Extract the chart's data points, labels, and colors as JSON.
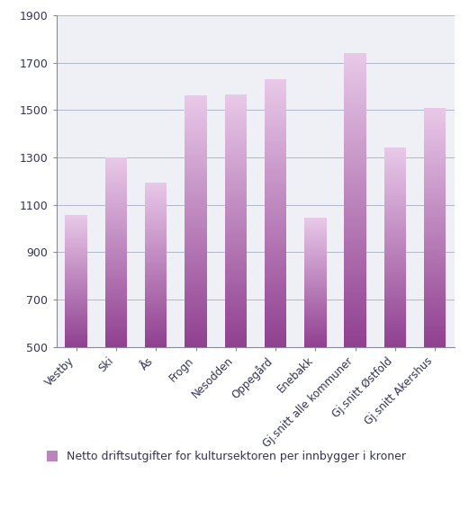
{
  "categories": [
    "Vestby",
    "Ski",
    "Ås",
    "Frogn",
    "Nesodden",
    "Oppegård",
    "Enebakk",
    "Gj.snitt alle kommuner",
    "Gj.snitt Østfold",
    "Gj.snitt Akershus"
  ],
  "values": [
    1055,
    1300,
    1195,
    1560,
    1565,
    1630,
    1045,
    1740,
    1340,
    1510
  ],
  "ylim": [
    500,
    1900
  ],
  "yticks": [
    500,
    700,
    900,
    1100,
    1300,
    1500,
    1700,
    1900
  ],
  "bar_color_top": "#e8c8e8",
  "bar_color_bottom": "#904090",
  "legend_label": "Netto driftsutgifter for kultursektoren per innbygger i kroner",
  "legend_color_top": "#e8c8e8",
  "legend_color_bottom": "#904090",
  "plot_bg_color": "#eef0f5",
  "outer_bg_color": "#ffffff",
  "grid_color": "#b0b8c8",
  "axis_color": "#888899",
  "tick_label_color": "#333355",
  "ytick_fontsize": 9,
  "xtick_fontsize": 8.5,
  "legend_fontsize": 9,
  "bar_width": 0.55
}
